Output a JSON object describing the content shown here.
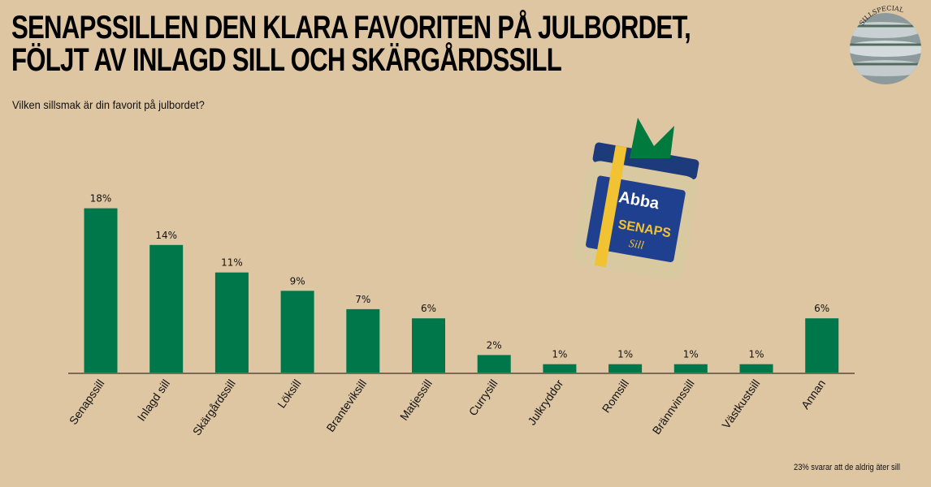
{
  "header": {
    "title_line1": "SENAPSSILLEN DEN KLARA FAVORITEN PÅ JULBORDET,",
    "title_line2": "FÖLJT AV INLAGD SILL OCH SKÄRGÅRDSSILL",
    "subtitle": "Vilken sillsmak är din favorit på julbordet?"
  },
  "badge": {
    "text": "SILLSPECIAL"
  },
  "product_image": {
    "brand": "Abba",
    "product": "SENAPS",
    "product2": "Sill"
  },
  "footnote": "23% svarar att de aldrig äter sill",
  "colors": {
    "background": "#dfc6a3",
    "bar": "#00774a",
    "axis": "#7a6a55"
  },
  "chart_data": {
    "type": "bar",
    "title": "Vilken sillsmak är din favorit på julbordet?",
    "categories": [
      "Senapssill",
      "Inlagd sill",
      "Skärgårdssill",
      "Löksill",
      "Branteviksill",
      "Matjessill",
      "Currysill",
      "Julkryddor",
      "Romsill",
      "Brännvinssill",
      "Västkustsill",
      "Annan"
    ],
    "values": [
      18,
      14,
      11,
      9,
      7,
      6,
      2,
      1,
      1,
      1,
      1,
      6
    ],
    "value_labels": [
      "18%",
      "14%",
      "11%",
      "9%",
      "7%",
      "6%",
      "2%",
      "1%",
      "1%",
      "1%",
      "1%",
      "6%"
    ],
    "xlabel": "",
    "ylabel": "",
    "ylim": [
      0,
      20
    ],
    "grid": false,
    "legend": "none"
  }
}
